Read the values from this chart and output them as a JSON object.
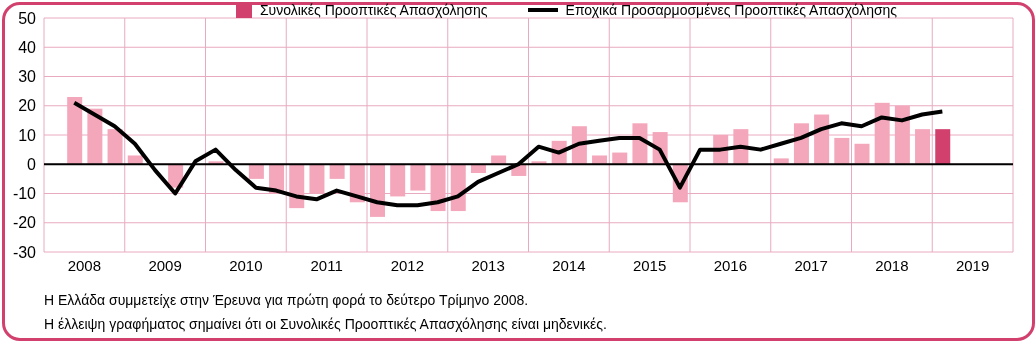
{
  "chart_data": {
    "type": "bar",
    "xlim": [
      2008,
      2020
    ],
    "xticks": [
      {
        "value": 2008,
        "label": null
      },
      {
        "value": 2008.5,
        "label": "2008"
      },
      {
        "value": 2009,
        "label": null
      },
      {
        "value": 2009.5,
        "label": "2009"
      },
      {
        "value": 2010,
        "label": null
      },
      {
        "value": 2010.5,
        "label": "2010"
      },
      {
        "value": 2011,
        "label": null
      },
      {
        "value": 2011.5,
        "label": "2011"
      },
      {
        "value": 2012,
        "label": null
      },
      {
        "value": 2012.5,
        "label": "2012"
      },
      {
        "value": 2013,
        "label": null
      },
      {
        "value": 2013.5,
        "label": "2013"
      },
      {
        "value": 2014,
        "label": null
      },
      {
        "value": 2014.5,
        "label": "2014"
      },
      {
        "value": 2015,
        "label": null
      },
      {
        "value": 2015.5,
        "label": "2015"
      },
      {
        "value": 2016,
        "label": null
      },
      {
        "value": 2016.5,
        "label": "2016"
      },
      {
        "value": 2017,
        "label": null
      },
      {
        "value": 2017.5,
        "label": "2017"
      },
      {
        "value": 2018,
        "label": null
      },
      {
        "value": 2018.5,
        "label": "2018"
      },
      {
        "value": 2019,
        "label": null
      },
      {
        "value": 2019.5,
        "label": "2019"
      },
      {
        "value": 2020,
        "label": null
      }
    ],
    "x": [
      2008.375,
      2008.625,
      2008.875,
      2009.125,
      2009.375,
      2009.625,
      2009.875,
      2010.125,
      2010.375,
      2010.625,
      2010.875,
      2011.125,
      2011.375,
      2011.625,
      2011.875,
      2012.125,
      2012.375,
      2012.625,
      2012.875,
      2013.125,
      2013.375,
      2013.625,
      2013.875,
      2014.125,
      2014.375,
      2014.625,
      2014.875,
      2015.125,
      2015.375,
      2015.625,
      2015.875,
      2016.125,
      2016.375,
      2016.625,
      2016.875,
      2017.125,
      2017.375,
      2017.625,
      2017.875,
      2018.125,
      2018.375,
      2018.625,
      2018.875,
      2019.125
    ],
    "ylim": [
      -30,
      50
    ],
    "yticks": [
      -30,
      -20,
      -10,
      0,
      10,
      20,
      30,
      40,
      50
    ],
    "grid": true,
    "legend": "top",
    "ref_lines": [
      {
        "axis": "y",
        "value": 0,
        "color": "#000000"
      }
    ],
    "series": [
      {
        "name": "Συνολικές Προοπτικές Απασχόλησης",
        "color": "#d2406e",
        "colors": [
          "#f4a6bb",
          "#f4a6bb",
          "#f4a6bb",
          "#f4a6bb",
          "#f4a6bb",
          "#f4a6bb",
          "#f4a6bb",
          "#f4a6bb",
          "#f4a6bb",
          "#f4a6bb",
          "#f4a6bb",
          "#f4a6bb",
          "#f4a6bb",
          "#f4a6bb",
          "#f4a6bb",
          "#f4a6bb",
          "#f4a6bb",
          "#f4a6bb",
          "#f4a6bb",
          "#f4a6bb",
          "#f4a6bb",
          "#f4a6bb",
          "#f4a6bb",
          "#f4a6bb",
          "#f4a6bb",
          "#f4a6bb",
          "#f4a6bb",
          "#f4a6bb",
          "#f4a6bb",
          "#f4a6bb",
          "#f4a6bb",
          "#f4a6bb",
          "#f4a6bb",
          "#f4a6bb",
          "#f4a6bb",
          "#f4a6bb",
          "#f4a6bb",
          "#f4a6bb",
          "#f4a6bb",
          "#f4a6bb",
          "#f4a6bb",
          "#f4a6bb",
          "#f4a6bb",
          "#d2406e"
        ],
        "values": [
          23,
          19,
          12,
          3,
          0,
          -8,
          0,
          1,
          0,
          -5,
          -10,
          -15,
          -10,
          -5,
          -13,
          -18,
          -11,
          -9,
          -16,
          -16,
          -3,
          3,
          -4,
          1,
          8,
          13,
          3,
          4,
          14,
          11,
          -13,
          0,
          10,
          12,
          0,
          2,
          14,
          17,
          9,
          7,
          21,
          20,
          12,
          12
        ]
      },
      {
        "name": "Εποχικά Προσαρμοσμένες Προοπτικές Απασχόλησης",
        "type": "line",
        "color": "#000000",
        "values": [
          21,
          17,
          13,
          7,
          -2,
          -10,
          1,
          5,
          -2,
          -8,
          -9,
          -11,
          -12,
          -9,
          -11,
          -13,
          -14,
          -14,
          -13,
          -11,
          -6,
          -3,
          0,
          6,
          4,
          7,
          8,
          9,
          9,
          5,
          -8,
          5,
          5,
          6,
          5,
          7,
          9,
          12,
          14,
          13,
          16,
          15,
          17,
          18
        ]
      }
    ],
    "annotations": [
      "Η Ελλάδα συμμετείχε στην Έρευνα για πρώτη φορά το δεύτερο Τρίμηνο 2008.",
      "Η έλλειψη γραφήματος σημαίνει ότι οι Συνολικές Προοπτικές Απασχόλησης είναι μηδενικές."
    ]
  }
}
